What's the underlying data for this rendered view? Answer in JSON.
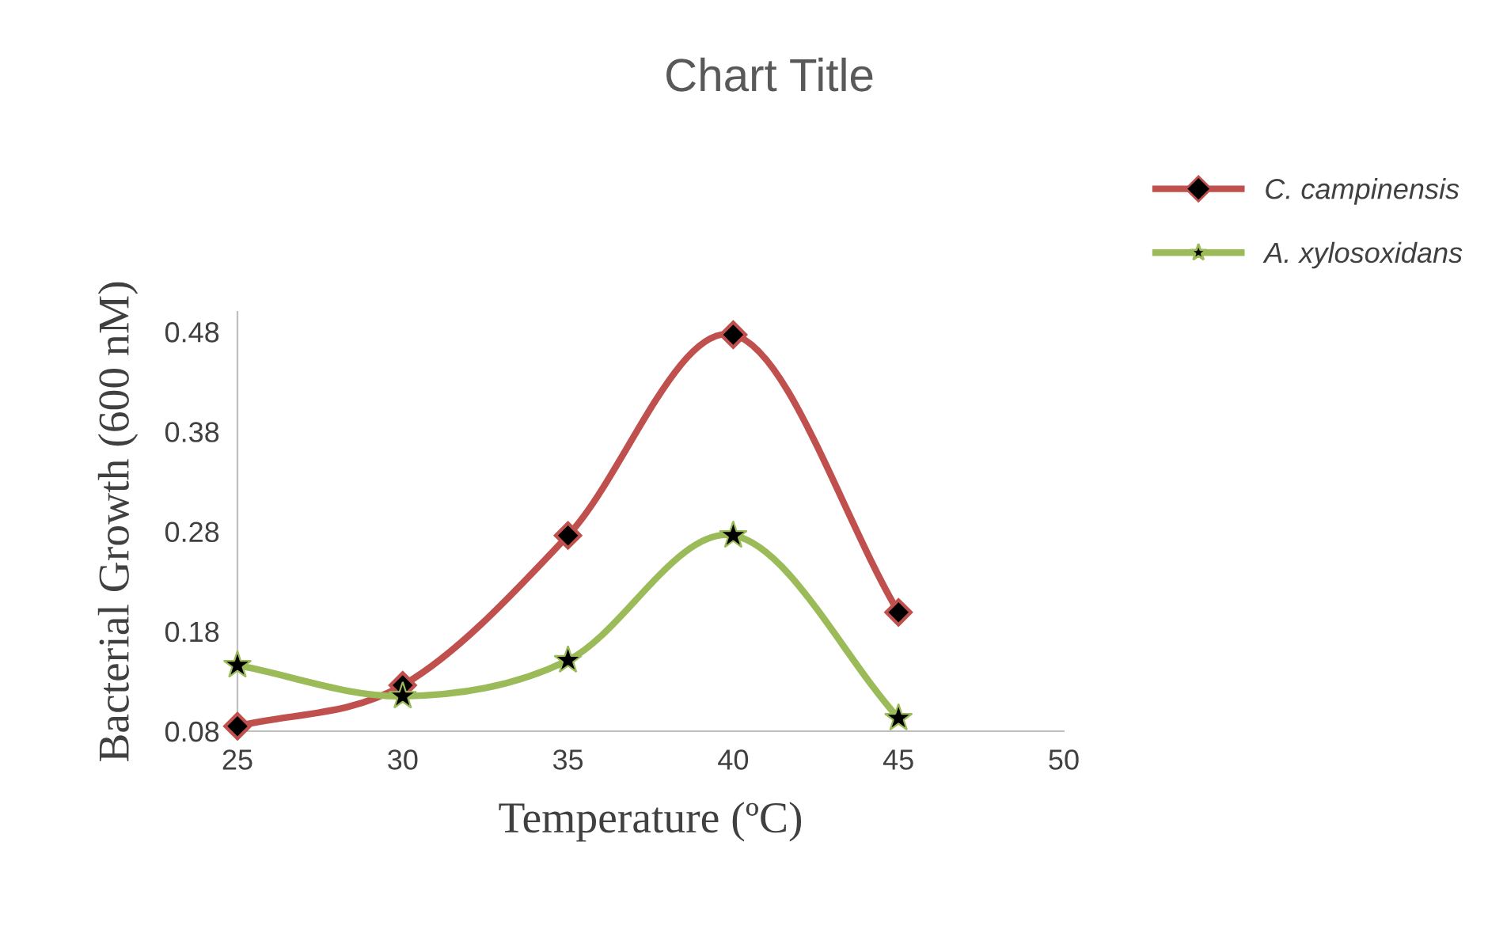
{
  "chart_data": {
    "type": "line",
    "title": "Chart Title",
    "xlabel": "Temperature (ºC)",
    "ylabel": "Bacterial Growth (600 nM)",
    "x": [
      25,
      30,
      35,
      40,
      45
    ],
    "series": [
      {
        "name": "C. campinensis",
        "color": "#c0504d",
        "marker": "diamond",
        "values": [
          0.085,
          0.126,
          0.276,
          0.477,
          0.199
        ]
      },
      {
        "name": "A. xylosoxidans",
        "color": "#9bbb59",
        "marker": "star",
        "values": [
          0.146,
          0.115,
          0.151,
          0.276,
          0.093
        ]
      }
    ],
    "xlim": [
      25,
      50
    ],
    "xticks": [
      25,
      30,
      35,
      40,
      45,
      50
    ],
    "ylim": [
      0.08,
      0.5
    ],
    "yticks": [
      {
        "value": 0.08,
        "label": "0.08"
      },
      {
        "value": 0.18,
        "label": "0.18"
      },
      {
        "value": 0.28,
        "label": "0.28"
      },
      {
        "value": 0.38,
        "label": "0.38"
      },
      {
        "value": 0.48,
        "label": "0.48"
      }
    ],
    "grid": false,
    "legend": "right"
  }
}
